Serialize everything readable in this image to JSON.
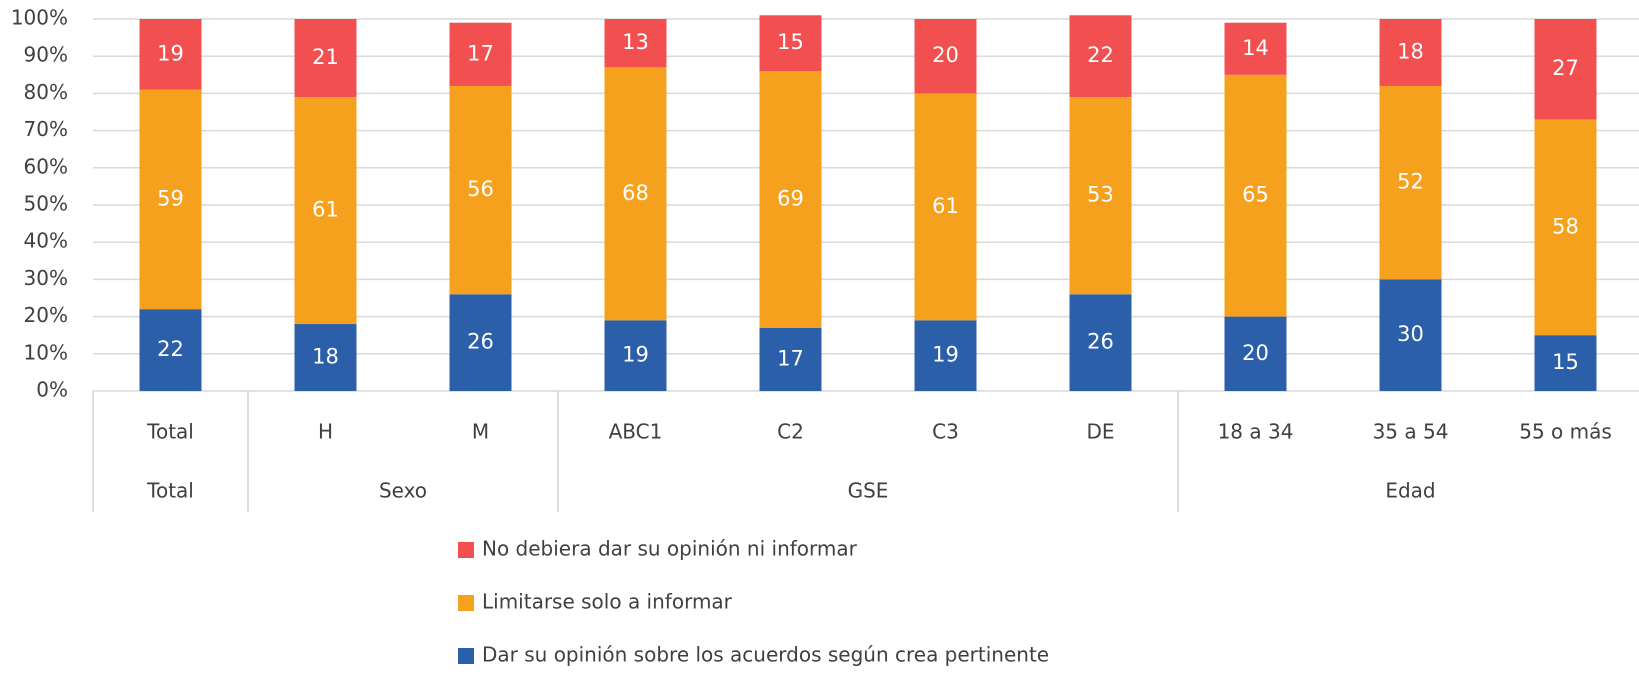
{
  "chart_data": {
    "type": "bar",
    "stacked": true,
    "groups": [
      {
        "name": "Total",
        "categories": [
          "Total"
        ]
      },
      {
        "name": "Sexo",
        "categories": [
          "H",
          "M"
        ]
      },
      {
        "name": "GSE",
        "categories": [
          "ABC1",
          "C2",
          "C3",
          "DE"
        ]
      },
      {
        "name": "Edad",
        "categories": [
          "18 a 34",
          "35 a 54",
          "55 o más"
        ]
      }
    ],
    "series": [
      {
        "name": "Dar su opinión sobre los acuerdos según crea pertinente",
        "color": "#2b5fa9",
        "values": [
          22,
          18,
          26,
          19,
          17,
          19,
          26,
          20,
          30,
          15
        ]
      },
      {
        "name": "Limitarse solo a informar",
        "color": "#f6a11d",
        "values": [
          59,
          61,
          56,
          68,
          69,
          61,
          53,
          65,
          52,
          58
        ]
      },
      {
        "name": "No debiera dar su opinión ni informar",
        "color": "#f25050",
        "values": [
          19,
          21,
          17,
          13,
          15,
          20,
          22,
          14,
          18,
          27
        ]
      }
    ],
    "ylim": [
      0,
      100
    ],
    "yticks": [
      {
        "value": 0,
        "label": "0%"
      },
      {
        "value": 10,
        "label": "10%"
      },
      {
        "value": 20,
        "label": "20%"
      },
      {
        "value": 30,
        "label": "30%"
      },
      {
        "value": 40,
        "label": "40%"
      },
      {
        "value": 50,
        "label": "50%"
      },
      {
        "value": 60,
        "label": "60%"
      },
      {
        "value": 70,
        "label": "70%"
      },
      {
        "value": 80,
        "label": "80%"
      },
      {
        "value": 90,
        "label": "90%"
      },
      {
        "value": 100,
        "label": "100%"
      }
    ],
    "grid": true
  }
}
